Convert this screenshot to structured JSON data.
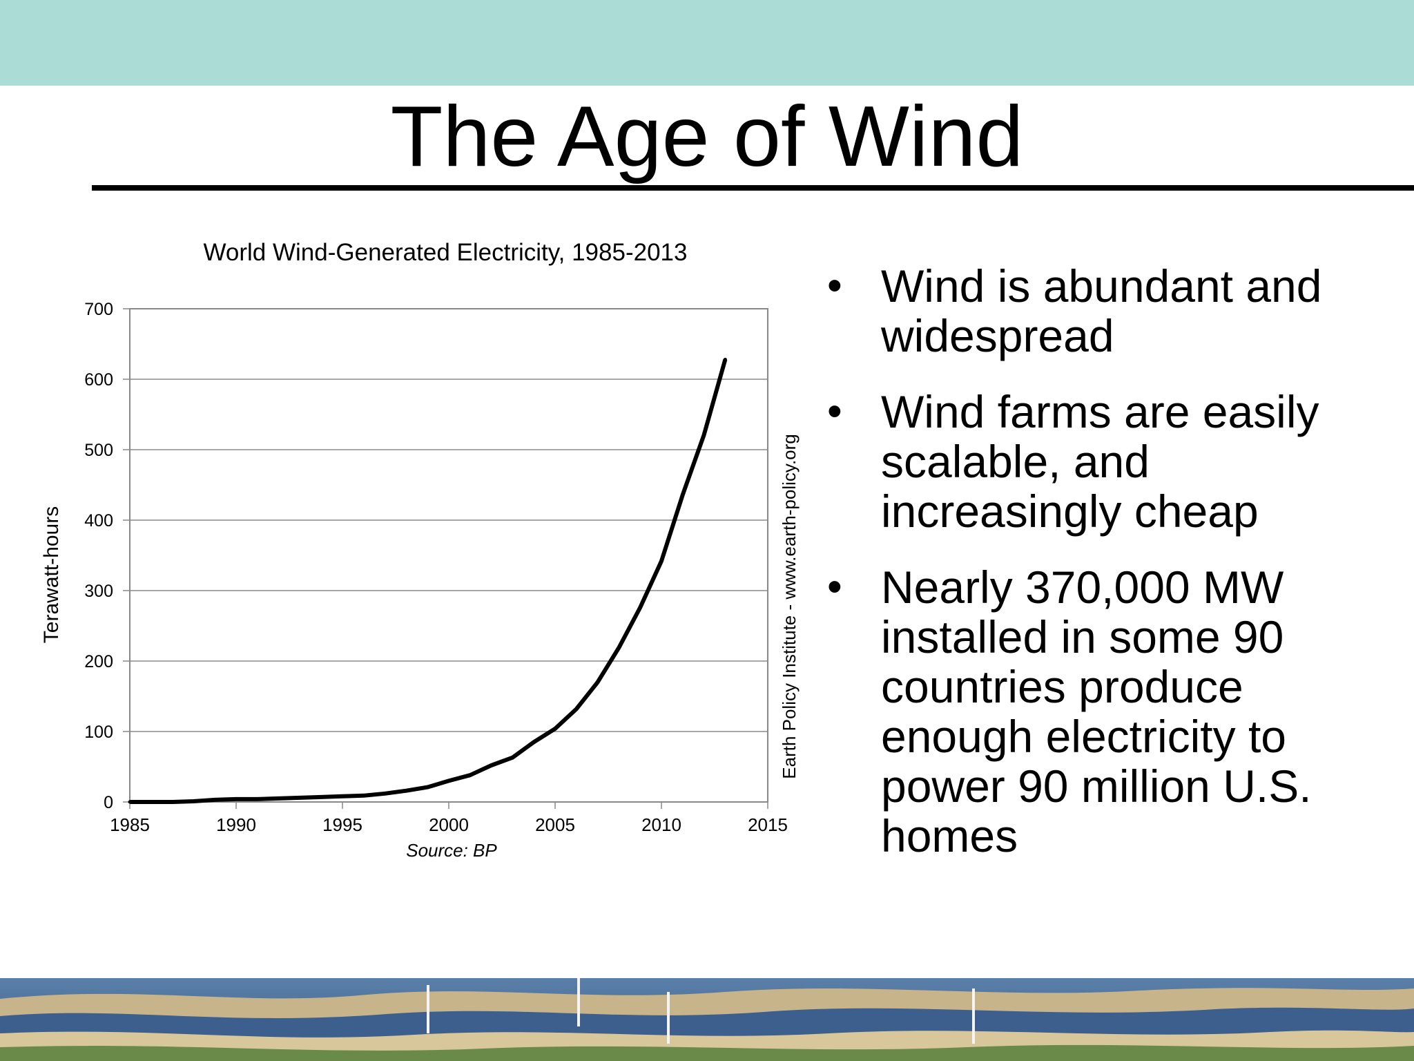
{
  "slide": {
    "title": "The Age of Wind",
    "bullets": [
      "Wind is abundant and widespread",
      "Wind farms are easily scalable, and increasingly cheap",
      "Nearly 370,000 MW installed in some 90 countries produce enough electricity to power 90 million U.S. homes"
    ],
    "bullet_glyph": "•"
  },
  "colors": {
    "top_band": "#acdcd6",
    "line": "#000000",
    "grid": "#888888"
  },
  "chart_data": {
    "type": "line",
    "title": "World Wind-Generated Electricity, 1985-2013",
    "ylabel": "Terawatt-hours",
    "xlabel": "",
    "source": "Source: BP",
    "credit": "Earth Policy Institute - www.earth-policy.org",
    "xlim": [
      1985,
      2015
    ],
    "ylim": [
      0,
      700
    ],
    "xticks": [
      1985,
      1990,
      1995,
      2000,
      2005,
      2010,
      2015
    ],
    "yticks": [
      0,
      100,
      200,
      300,
      400,
      500,
      600,
      700
    ],
    "grid": "horizontal",
    "series": [
      {
        "x": [
          1985,
          1986,
          1987,
          1988,
          1989,
          1990,
          1991,
          1992,
          1993,
          1994,
          1995,
          1996,
          1997,
          1998,
          1999,
          2000,
          2001,
          2002,
          2003,
          2004,
          2005,
          2006,
          2007,
          2008,
          2009,
          2010,
          2011,
          2012,
          2013
        ],
        "values": [
          0,
          0,
          0,
          1,
          3,
          4,
          4,
          5,
          6,
          7,
          8,
          9,
          12,
          16,
          21,
          30,
          38,
          52,
          63,
          85,
          104,
          132,
          170,
          219,
          276,
          342,
          436,
          521,
          628
        ]
      }
    ]
  }
}
